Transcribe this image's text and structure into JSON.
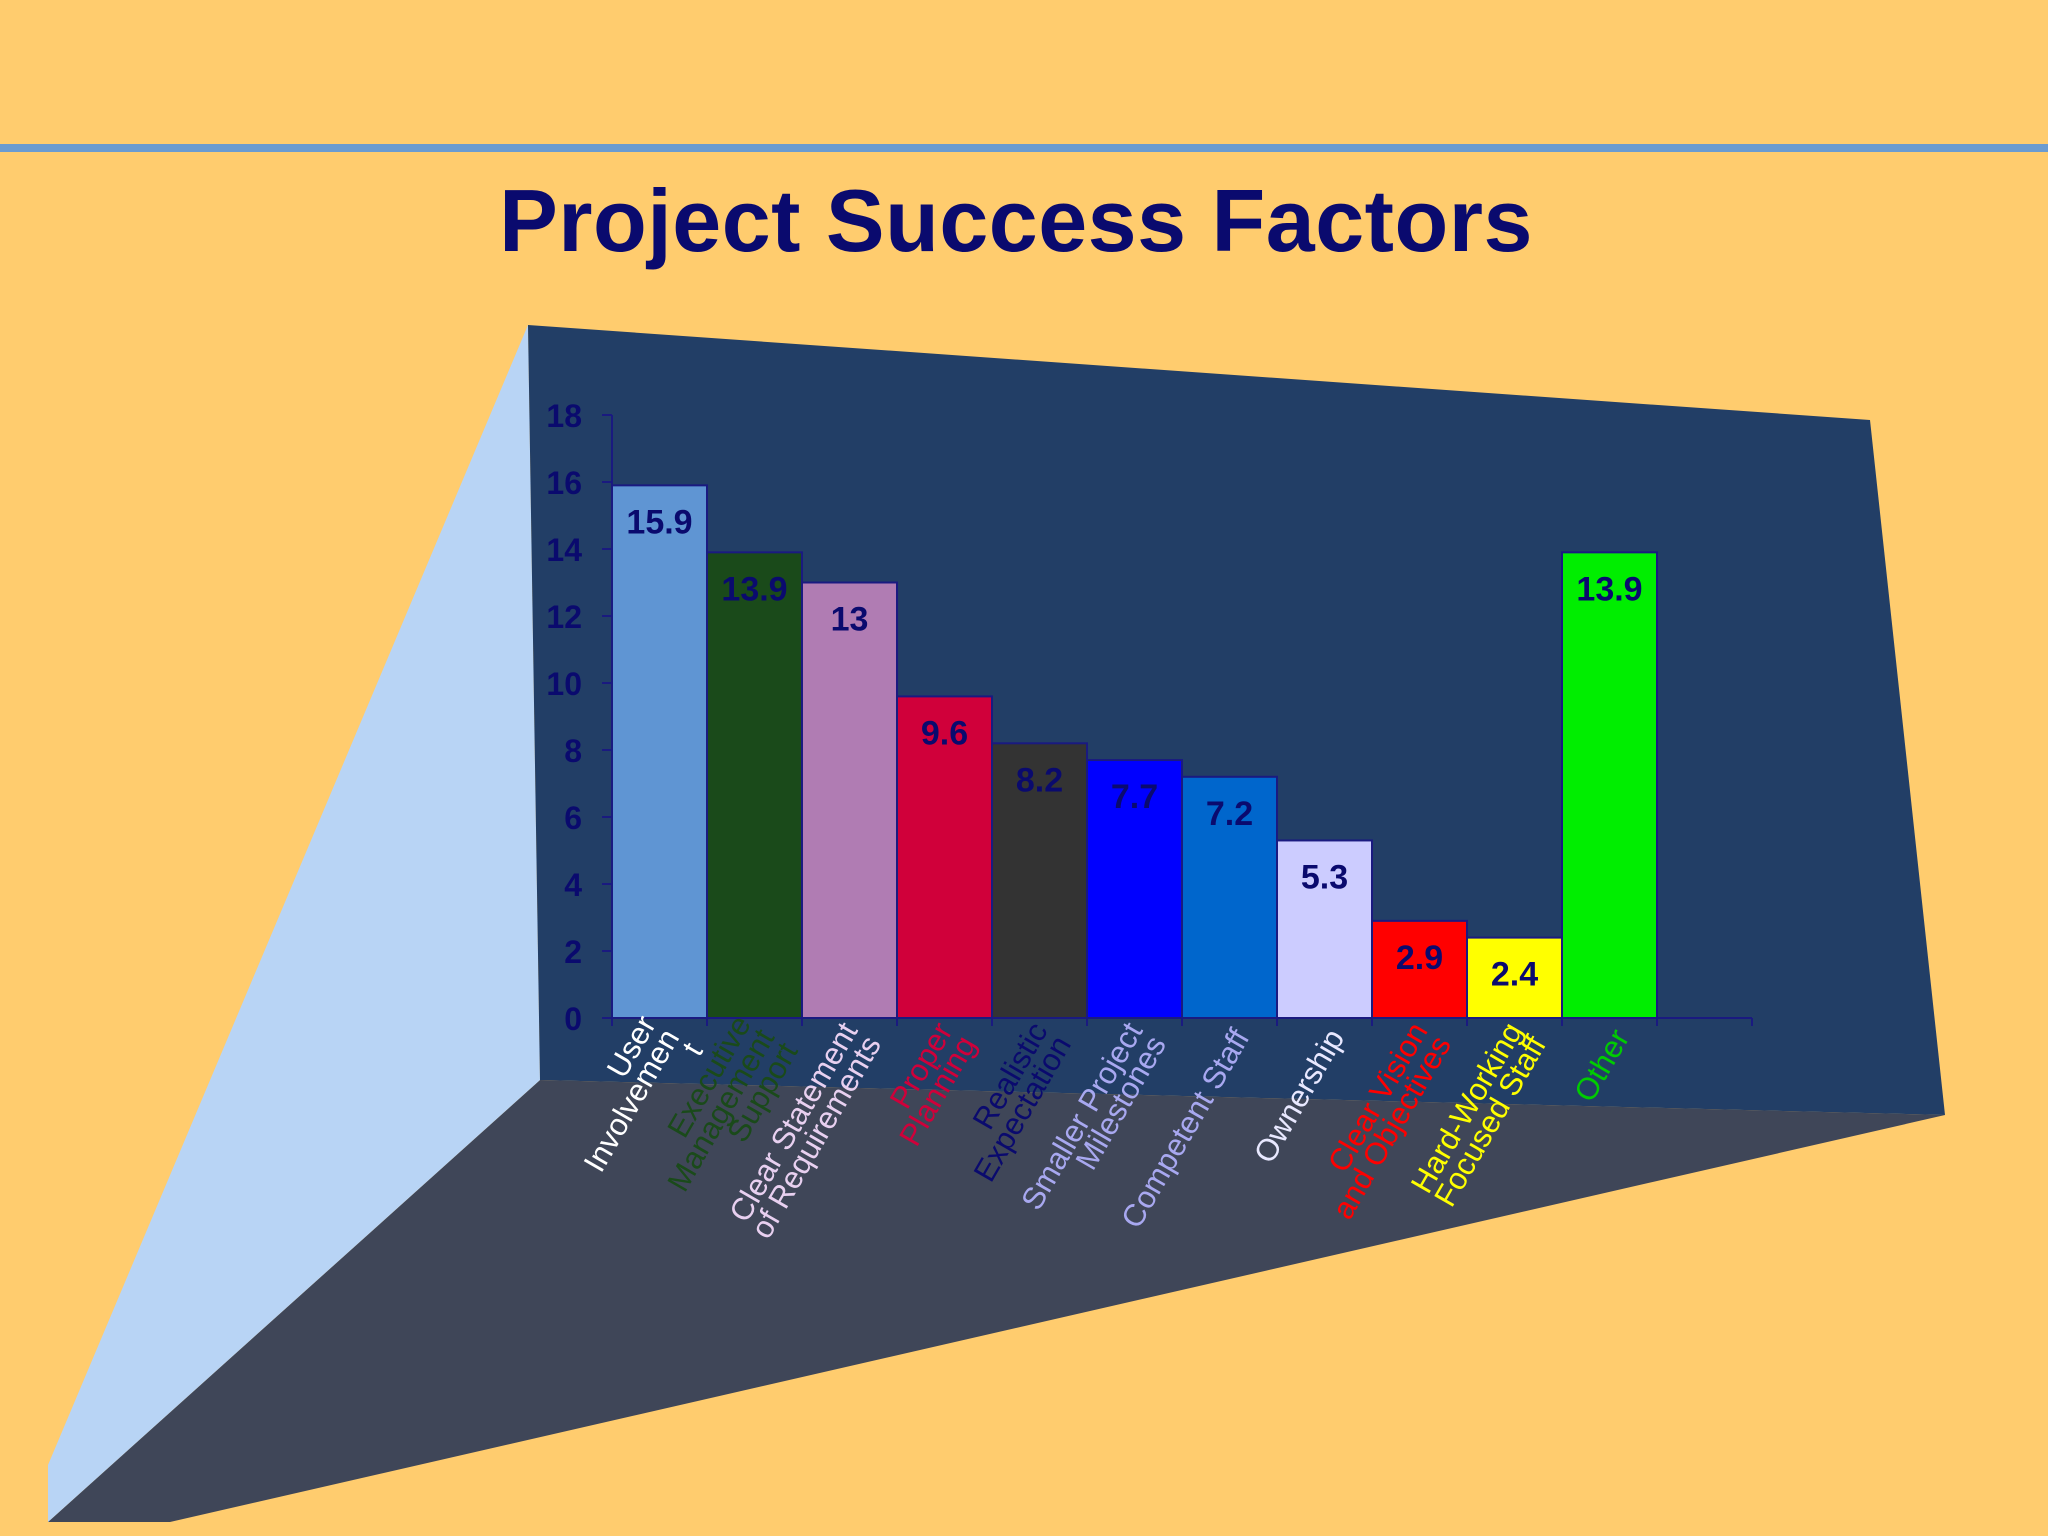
{
  "slide": {
    "title": "Project Success Factors",
    "background_color": "#FFCC6E",
    "rule_color": "#6B9BD0",
    "panel_color": "#223E66",
    "floor_color": "#3F4658",
    "side_wall_color": "#B8D4F5"
  },
  "chart_data": {
    "type": "bar",
    "title": "Project Success Factors",
    "xlabel": "",
    "ylabel": "",
    "ylim": [
      0,
      18
    ],
    "yticks": [
      0,
      2,
      4,
      6,
      8,
      10,
      12,
      14,
      16,
      18
    ],
    "grid": false,
    "legend": "none",
    "categories": [
      "User Involvement",
      "Executive Management Support",
      "Clear Statement of Requirements",
      "Proper Planning",
      "Realistic Expectation",
      "Smaller Project Milestones",
      "Competent Staff",
      "Ownership",
      "Clear Vision and Objectives",
      "Hard-Working Focused Staff",
      "Other"
    ],
    "category_label_lines": [
      [
        "User",
        "Involvemen",
        "t"
      ],
      [
        "Executive",
        "Management",
        "Support"
      ],
      [
        "Clear Statement",
        "of Requirements"
      ],
      [
        "Proper",
        "Planning"
      ],
      [
        "Realistic",
        "Expectation"
      ],
      [
        "Smaller Project",
        "Milestones"
      ],
      [
        "Competent Staff"
      ],
      [
        "Ownership"
      ],
      [
        "Clear Vision",
        "and Objectives"
      ],
      [
        "Hard-Working",
        "Focused Staff"
      ],
      [
        "Other"
      ]
    ],
    "values": [
      15.9,
      13.9,
      13,
      9.6,
      8.2,
      7.7,
      7.2,
      5.3,
      2.9,
      2.4,
      13.9
    ],
    "value_labels": [
      "15.9",
      "13.9",
      "13",
      "9.6",
      "8.2",
      "7.7",
      "7.2",
      "5.3",
      "2.9",
      "2.4",
      "13.9"
    ],
    "bar_colors": [
      "#5F95D3",
      "#1A4A1A",
      "#B07CB3",
      "#D0003A",
      "#333333",
      "#0000FF",
      "#0066CC",
      "#CCCCFF",
      "#FF0000",
      "#FFFF00",
      "#00EE00"
    ],
    "label_colors": [
      "#FFFFFF",
      "#1A4A1A",
      "#E8D0F0",
      "#D0003A",
      "#0A0A6E",
      "#A8A8F0",
      "#A8A8F0",
      "#E8E8FF",
      "#FF0000",
      "#FFFF00",
      "#00CC00"
    ]
  }
}
